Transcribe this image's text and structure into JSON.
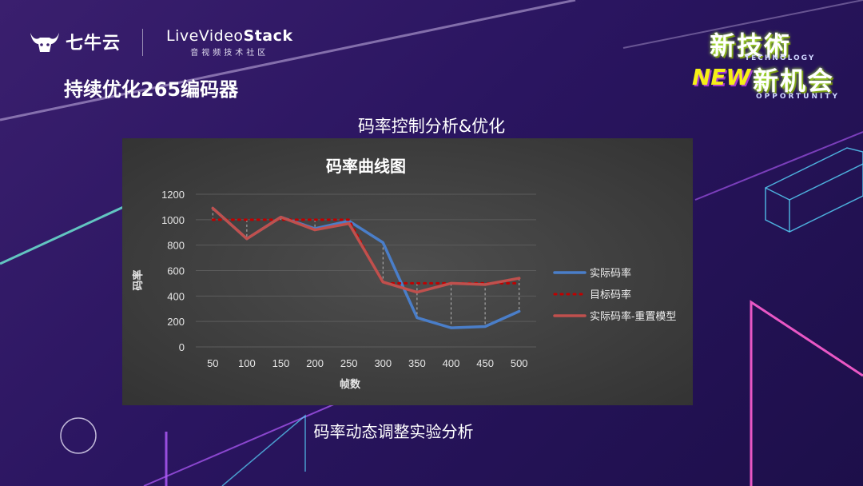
{
  "header": {
    "brand_qiniu": "七牛云",
    "brand_lvs_prefix": "LiveVideo",
    "brand_lvs_suffix": "Stack",
    "brand_lvs_sub": "音视频技术社区"
  },
  "event_badge": {
    "line1": "新技術",
    "tag1": "TECHNOLOGY",
    "new_text": "NEW",
    "line2": "新机会",
    "tag2": "OPPORTUNITY"
  },
  "slide": {
    "title": "持续优化265编码器",
    "subtitle": "码率控制分析&优化",
    "caption": "码率动态调整实验分析"
  },
  "colors": {
    "series_actual": "#4a7ec9",
    "series_target": "#c00000",
    "series_reset": "#c0504d",
    "chart_bg": "#404040"
  },
  "chart_data": {
    "type": "line",
    "title": "码率曲线图",
    "xlabel": "帧数",
    "ylabel": "码率",
    "categories": [
      "50",
      "100",
      "150",
      "200",
      "250",
      "300",
      "350",
      "400",
      "450",
      "500"
    ],
    "ylim": [
      0,
      1200
    ],
    "yticks": [
      0,
      200,
      400,
      600,
      800,
      1000,
      1200
    ],
    "grid": true,
    "legend": "right",
    "series": [
      {
        "name": "实际码率",
        "style": "solid",
        "values": [
          1090,
          850,
          1020,
          930,
          990,
          820,
          230,
          150,
          160,
          280
        ]
      },
      {
        "name": "目标码率",
        "style": "dotted",
        "values": [
          1000,
          1000,
          1000,
          1000,
          1000,
          500,
          500,
          500,
          500,
          500
        ]
      },
      {
        "name": "实际码率-重置模型",
        "style": "solid",
        "values": [
          1090,
          850,
          1020,
          920,
          970,
          510,
          430,
          500,
          490,
          540
        ]
      }
    ]
  }
}
